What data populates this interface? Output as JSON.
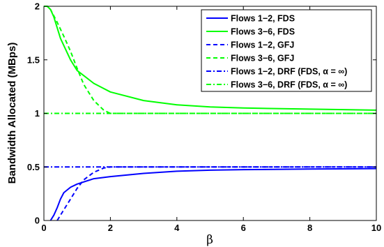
{
  "chart_data": {
    "type": "line",
    "title": "",
    "xlabel": "β",
    "ylabel": "Bandwidth Allocated (MBps)",
    "xlim": [
      0,
      10
    ],
    "ylim": [
      0,
      2
    ],
    "xticks": [
      0,
      2,
      4,
      6,
      8,
      10
    ],
    "xtick_labels": [
      "0",
      "2",
      "4",
      "6",
      "8",
      "10"
    ],
    "yticks": [
      0,
      0.5,
      1,
      1.5,
      2
    ],
    "ytick_labels": [
      "0",
      "0.5",
      "1",
      "1.5",
      "2"
    ],
    "grid": false,
    "legend_position": "top-right",
    "series": [
      {
        "name": "Flows 1−2, FDS",
        "color": "#0000ff",
        "style": "solid",
        "x": [
          0.2,
          0.3,
          0.4,
          0.5,
          0.6,
          0.8,
          1.0,
          1.5,
          2.0,
          3.0,
          4.0,
          5.0,
          6.0,
          8.0,
          10.0
        ],
        "y": [
          0.0,
          0.05,
          0.12,
          0.2,
          0.26,
          0.31,
          0.34,
          0.39,
          0.41,
          0.44,
          0.46,
          0.47,
          0.475,
          0.48,
          0.485
        ]
      },
      {
        "name": "Flows 3−6, FDS",
        "color": "#00ff00",
        "style": "solid",
        "x": [
          0.0,
          0.1,
          0.2,
          0.3,
          0.5,
          0.8,
          1.0,
          1.5,
          2.0,
          3.0,
          4.0,
          5.0,
          6.0,
          8.0,
          10.0
        ],
        "y": [
          2.0,
          2.0,
          1.97,
          1.9,
          1.7,
          1.5,
          1.4,
          1.28,
          1.2,
          1.12,
          1.08,
          1.06,
          1.05,
          1.04,
          1.03
        ]
      },
      {
        "name": "Flows 1−2, GFJ",
        "color": "#0000ff",
        "style": "dashed",
        "x": [
          0.4,
          0.5,
          0.6,
          0.8,
          1.0,
          1.2,
          1.5,
          1.8,
          2.0,
          2.2,
          3.0,
          4.0,
          6.0,
          8.0,
          10.0
        ],
        "y": [
          0.0,
          0.05,
          0.1,
          0.2,
          0.3,
          0.38,
          0.45,
          0.49,
          0.5,
          0.5,
          0.5,
          0.5,
          0.5,
          0.5,
          0.5
        ]
      },
      {
        "name": "Flows 3−6, GFJ",
        "color": "#00ff00",
        "style": "dashed",
        "x": [
          0.0,
          0.1,
          0.2,
          0.4,
          0.6,
          0.8,
          1.0,
          1.2,
          1.5,
          1.8,
          2.0,
          2.2,
          3.0,
          4.0,
          6.0,
          8.0,
          10.0
        ],
        "y": [
          2.0,
          2.0,
          1.97,
          1.85,
          1.72,
          1.58,
          1.42,
          1.27,
          1.12,
          1.03,
          1.0,
          1.0,
          1.0,
          1.0,
          1.0,
          1.0,
          1.0
        ]
      },
      {
        "name": "Flows 1−2, DRF (FDS, α = ∞)",
        "color": "#0000ff",
        "style": "dashdot",
        "x": [
          0,
          10
        ],
        "y": [
          0.5,
          0.5
        ]
      },
      {
        "name": "Flows 3−6, DRF (FDS, α = ∞)",
        "color": "#00ff00",
        "style": "dashdot",
        "x": [
          0,
          10
        ],
        "y": [
          1.0,
          1.0
        ]
      }
    ]
  }
}
